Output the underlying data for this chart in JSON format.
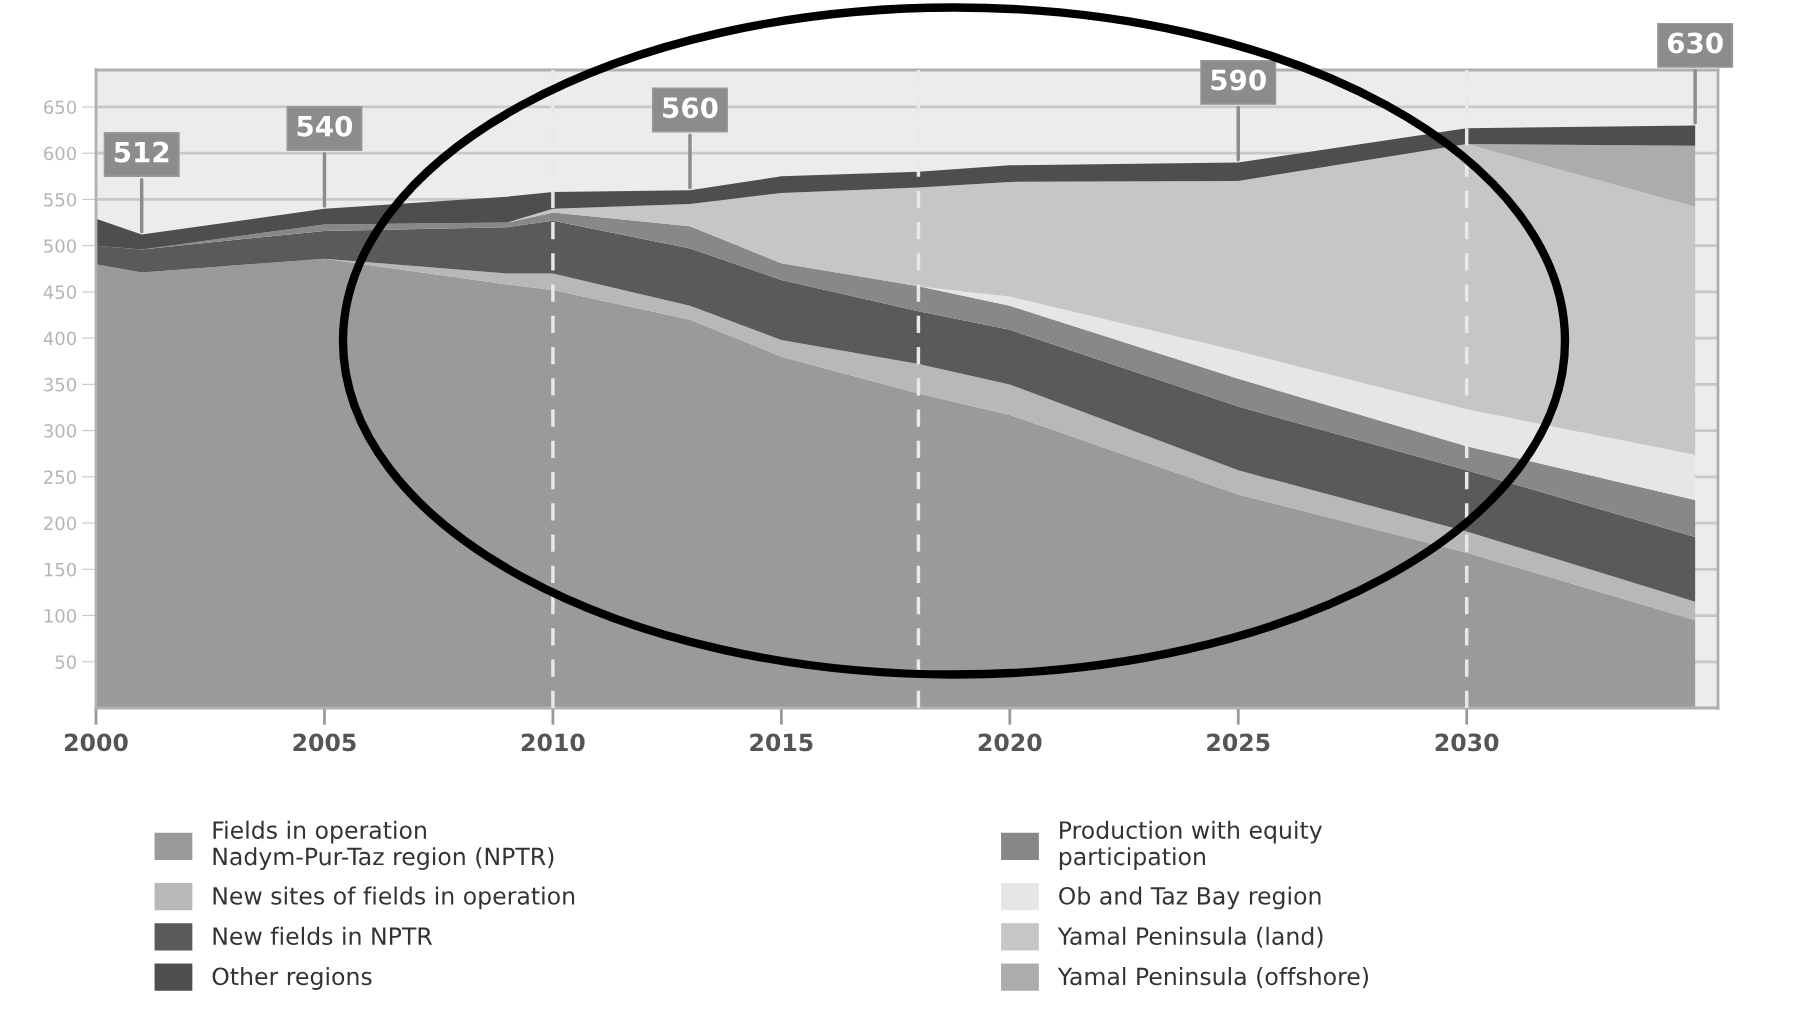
{
  "chart_data": {
    "type": "area",
    "stacked": true,
    "x": [
      2000,
      2001,
      2005,
      2009,
      2010,
      2013,
      2015,
      2018,
      2020,
      2025,
      2030,
      2035
    ],
    "series": [
      {
        "name": "Fields in operation\nNadym-Pur-Taz region (NPTR)",
        "color": "#9a9a9a",
        "values": [
          480,
          471,
          486,
          458,
          452,
          420,
          380,
          340,
          317,
          231,
          168,
          95
        ]
      },
      {
        "name": "New sites of fields in operation",
        "color": "#b8b8b8",
        "values": [
          0,
          0,
          0,
          12,
          18,
          15,
          18,
          32,
          33,
          26,
          23,
          20
        ]
      },
      {
        "name": "New fields in NPTR",
        "color": "#5a5a5a",
        "values": [
          20,
          25,
          30,
          50,
          57,
          62,
          65,
          57,
          59,
          69,
          66,
          70
        ]
      },
      {
        "name": "Production with equity\nparticipation",
        "color": "#888888",
        "values": [
          0,
          0,
          7,
          5,
          9,
          24,
          18,
          27,
          26,
          30,
          26,
          40
        ]
      },
      {
        "name": "Ob and Taz Bay region",
        "color": "#e6e6e6",
        "values": [
          0,
          0,
          0,
          0,
          0,
          0,
          0,
          0,
          10,
          30,
          40,
          49
        ]
      },
      {
        "name": "Yamal Peninsula (land)",
        "color": "#c6c6c6",
        "values": [
          0,
          0,
          0,
          0,
          4,
          24,
          76,
          107,
          124,
          184,
          287,
          268
        ]
      },
      {
        "name": "Yamal Peninsula (offshore)",
        "color": "#acacac",
        "values": [
          0,
          0,
          0,
          0,
          0,
          0,
          0,
          0,
          0,
          0,
          0,
          66
        ]
      },
      {
        "name": "Other regions",
        "color": "#4e4e4e",
        "values": [
          29,
          16,
          17,
          28,
          18,
          15,
          18,
          17,
          18,
          20,
          17,
          22
        ]
      }
    ],
    "xlim": [
      2000,
      2035.5
    ],
    "xticks": [
      2000,
      2005,
      2010,
      2015,
      2020,
      2025,
      2030
    ],
    "ylim": [
      0,
      690
    ],
    "yticks": [
      50,
      100,
      150,
      200,
      250,
      300,
      350,
      400,
      450,
      500,
      550,
      600,
      650
    ],
    "grid": "y",
    "legend": "bottom",
    "ref_lines": [
      {
        "axis": "x",
        "value": 2010,
        "color": "#e8e8e8",
        "line_style": "dashed"
      },
      {
        "axis": "x",
        "value": 2018,
        "color": "#e8e8e8",
        "line_style": "dashed"
      },
      {
        "axis": "x",
        "value": 2030,
        "color": "#e8e8e8",
        "line_style": "dashed"
      }
    ],
    "annotations": [
      {
        "text": "512",
        "x": 2001,
        "y": 512
      },
      {
        "text": "540",
        "x": 2005,
        "y": 540
      },
      {
        "text": "560",
        "x": 2013,
        "y": 560
      },
      {
        "text": "590",
        "x": 2025,
        "y": 590
      },
      {
        "text": "630",
        "x": 2035,
        "y": 630
      }
    ]
  }
}
